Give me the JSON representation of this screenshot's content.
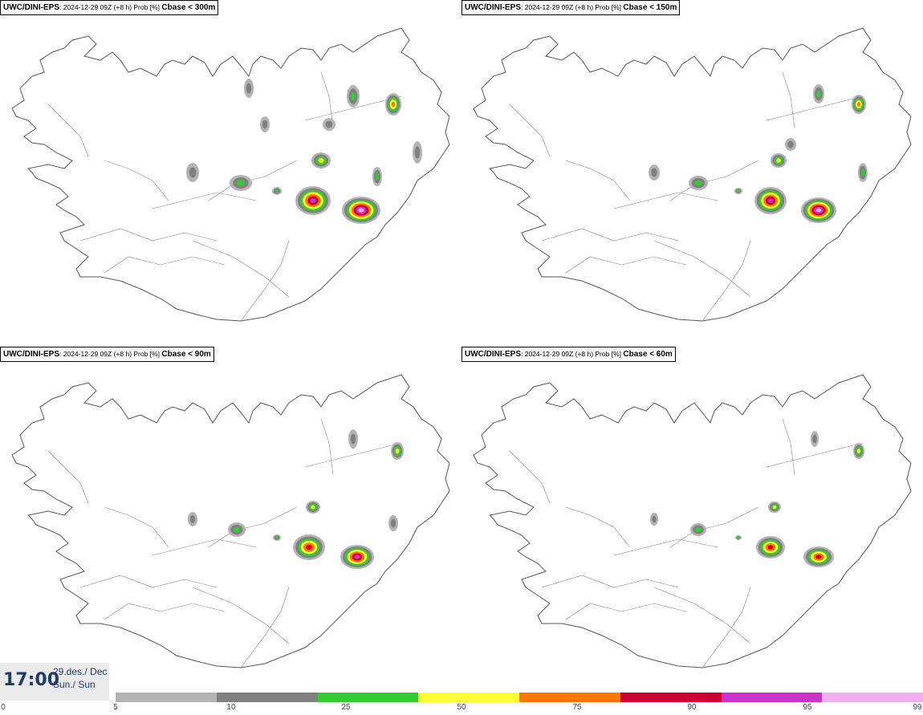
{
  "panels": [
    {
      "model": "UWC/DINI-EPS",
      "run": "2024-12-29 09Z (+8 h) Prob [%]",
      "threshold": "Cbase < 300m"
    },
    {
      "model": "UWC/DINI-EPS",
      "run": "2024-12-29 09Z (+8 h) Prob [%]",
      "threshold": "Cbase < 150m"
    },
    {
      "model": "UWC/DINI-EPS",
      "run": "2024-12-29 09Z (+8 h) Prob [%]",
      "threshold": "Cbase < 90m"
    },
    {
      "model": "UWC/DINI-EPS",
      "run": "2024-12-29 09Z (+8 h) Prob [%]",
      "threshold": "Cbase < 60m"
    }
  ],
  "valid_time": {
    "time": "17:00",
    "date": "29.des./ Dec",
    "day": "Sun./ Sun"
  },
  "legend": {
    "ticks": [
      "0",
      "5",
      "10",
      "25",
      "50",
      "75",
      "90",
      "95",
      "99"
    ],
    "colors": [
      "#b3b3b3",
      "#808080",
      "#33cc33",
      "#ffff33",
      "#ff7700",
      "#cc0033",
      "#cc33cc",
      "#f0b0f0"
    ]
  }
}
